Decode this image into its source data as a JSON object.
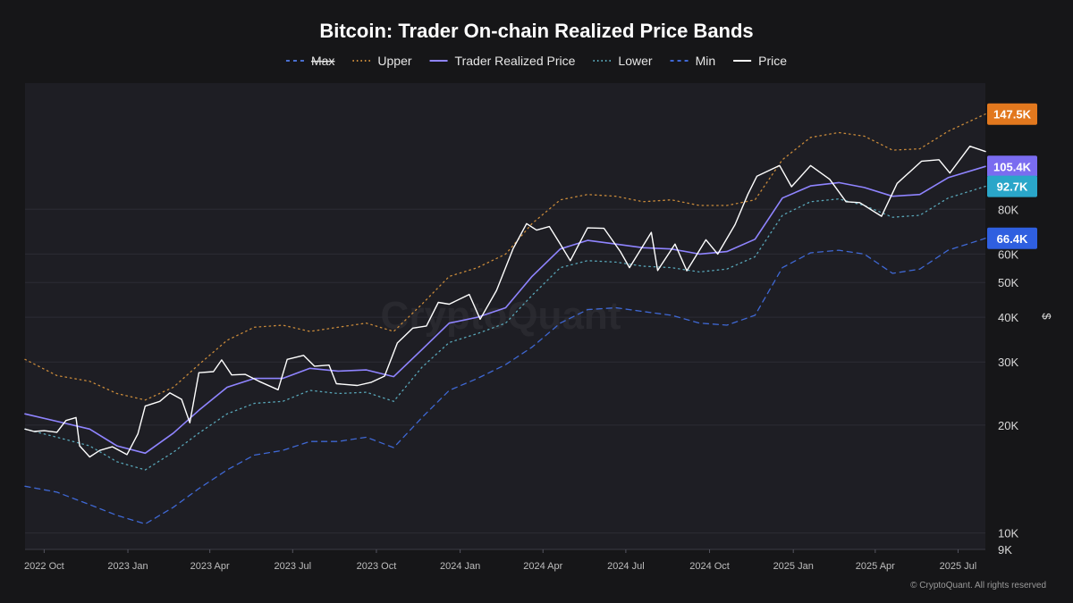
{
  "chart_data": {
    "type": "line",
    "title": "Bitcoin: Trader On-chain Realized Price Bands",
    "ylabel": "$",
    "yscale": "log",
    "ylim": [
      9000,
      180000
    ],
    "legend": [
      {
        "label": "Max",
        "color": "#4a6fd0",
        "style": "dashed",
        "disabled": true
      },
      {
        "label": "Upper",
        "color": "#c98a3a",
        "style": "dotted"
      },
      {
        "label": "Trader Realized Price",
        "color": "#8f84ff",
        "style": "solid"
      },
      {
        "label": "Lower",
        "color": "#58a6b8",
        "style": "dotted"
      },
      {
        "label": "Min",
        "color": "#3f68d4",
        "style": "dashed"
      },
      {
        "label": "Price",
        "color": "#ffffff",
        "style": "solid"
      }
    ],
    "y_ticks": [
      {
        "label": "9K",
        "value": 9000
      },
      {
        "label": "10K",
        "value": 10000
      },
      {
        "label": "20K",
        "value": 20000
      },
      {
        "label": "30K",
        "value": 30000
      },
      {
        "label": "40K",
        "value": 40000
      },
      {
        "label": "50K",
        "value": 50000
      },
      {
        "label": "60K",
        "value": 60000
      },
      {
        "label": "80K",
        "value": 80000
      }
    ],
    "x_ticks": [
      {
        "label": "2022 Oct",
        "value": "2022-10-01"
      },
      {
        "label": "2023 Jan",
        "value": "2023-01-01"
      },
      {
        "label": "2023 Apr",
        "value": "2023-04-01"
      },
      {
        "label": "2023 Jul",
        "value": "2023-07-01"
      },
      {
        "label": "2023 Oct",
        "value": "2023-10-01"
      },
      {
        "label": "2024 Jan",
        "value": "2024-01-01"
      },
      {
        "label": "2024 Apr",
        "value": "2024-04-01"
      },
      {
        "label": "2024 Jul",
        "value": "2024-07-01"
      },
      {
        "label": "2024 Oct",
        "value": "2024-10-01"
      },
      {
        "label": "2025 Jan",
        "value": "2025-01-01"
      },
      {
        "label": "2025 Apr",
        "value": "2025-04-01"
      },
      {
        "label": "2025 Jul",
        "value": "2025-07-01"
      }
    ],
    "xlim": [
      "2022-09-10",
      "2025-07-31"
    ],
    "last_value_badges": [
      {
        "label": "147.5K",
        "value": 147500,
        "color": "#e2781e"
      },
      {
        "label": "105.4K",
        "value": 105400,
        "color": "#7a6cf0"
      },
      {
        "label": "92.7K",
        "value": 92700,
        "color": "#2aa6c9"
      },
      {
        "label": "66.4K",
        "value": 66400,
        "color": "#2f5fe0"
      }
    ],
    "series": [
      {
        "name": "Upper",
        "color": "#c98a3a",
        "style": "dotted",
        "points": [
          [
            "2022-09-10",
            30500
          ],
          [
            "2022-10-15",
            27500
          ],
          [
            "2022-11-20",
            26500
          ],
          [
            "2022-12-20",
            24500
          ],
          [
            "2023-01-20",
            23500
          ],
          [
            "2023-02-20",
            25500
          ],
          [
            "2023-03-20",
            29500
          ],
          [
            "2023-04-20",
            34500
          ],
          [
            "2023-05-20",
            37500
          ],
          [
            "2023-06-20",
            38000
          ],
          [
            "2023-07-20",
            36500
          ],
          [
            "2023-08-20",
            37500
          ],
          [
            "2023-09-20",
            38500
          ],
          [
            "2023-10-20",
            36500
          ],
          [
            "2023-11-20",
            43500
          ],
          [
            "2023-12-20",
            52000
          ],
          [
            "2024-01-20",
            55000
          ],
          [
            "2024-02-20",
            60000
          ],
          [
            "2024-03-20",
            73000
          ],
          [
            "2024-04-20",
            85000
          ],
          [
            "2024-05-20",
            88000
          ],
          [
            "2024-06-20",
            87000
          ],
          [
            "2024-07-20",
            84000
          ],
          [
            "2024-08-20",
            85000
          ],
          [
            "2024-09-20",
            82000
          ],
          [
            "2024-10-20",
            82000
          ],
          [
            "2024-11-20",
            85000
          ],
          [
            "2024-12-20",
            110000
          ],
          [
            "2025-01-20",
            127000
          ],
          [
            "2025-02-20",
            131000
          ],
          [
            "2025-03-20",
            128000
          ],
          [
            "2025-04-20",
            117000
          ],
          [
            "2025-05-20",
            118000
          ],
          [
            "2025-06-20",
            132000
          ],
          [
            "2025-07-31",
            147500
          ]
        ]
      },
      {
        "name": "Trader Realized Price",
        "color": "#8f84ff",
        "style": "solid",
        "points": [
          [
            "2022-09-10",
            21500
          ],
          [
            "2022-10-15",
            20500
          ],
          [
            "2022-11-20",
            19500
          ],
          [
            "2022-12-20",
            17500
          ],
          [
            "2023-01-20",
            16700
          ],
          [
            "2023-02-20",
            19000
          ],
          [
            "2023-03-20",
            22000
          ],
          [
            "2023-04-20",
            25500
          ],
          [
            "2023-05-20",
            27000
          ],
          [
            "2023-06-20",
            27000
          ],
          [
            "2023-07-20",
            28800
          ],
          [
            "2023-08-20",
            28300
          ],
          [
            "2023-09-20",
            28500
          ],
          [
            "2023-10-20",
            27300
          ],
          [
            "2023-11-20",
            32500
          ],
          [
            "2023-12-20",
            38500
          ],
          [
            "2024-01-20",
            40000
          ],
          [
            "2024-02-20",
            42500
          ],
          [
            "2024-03-20",
            52000
          ],
          [
            "2024-04-20",
            62000
          ],
          [
            "2024-05-20",
            65500
          ],
          [
            "2024-06-20",
            64000
          ],
          [
            "2024-07-20",
            62500
          ],
          [
            "2024-08-20",
            62000
          ],
          [
            "2024-09-20",
            60000
          ],
          [
            "2024-10-20",
            61000
          ],
          [
            "2024-11-20",
            66000
          ],
          [
            "2024-12-20",
            86000
          ],
          [
            "2025-01-20",
            93000
          ],
          [
            "2025-02-20",
            95000
          ],
          [
            "2025-03-20",
            92000
          ],
          [
            "2025-04-20",
            87000
          ],
          [
            "2025-05-20",
            88000
          ],
          [
            "2025-06-20",
            98000
          ],
          [
            "2025-07-31",
            105400
          ]
        ]
      },
      {
        "name": "Lower",
        "color": "#58a6b8",
        "style": "dotted",
        "points": [
          [
            "2022-09-10",
            19500
          ],
          [
            "2022-10-15",
            18500
          ],
          [
            "2022-11-20",
            17500
          ],
          [
            "2022-12-20",
            15800
          ],
          [
            "2023-01-20",
            15000
          ],
          [
            "2023-02-20",
            16800
          ],
          [
            "2023-03-20",
            19000
          ],
          [
            "2023-04-20",
            21500
          ],
          [
            "2023-05-20",
            23000
          ],
          [
            "2023-06-20",
            23300
          ],
          [
            "2023-07-20",
            25000
          ],
          [
            "2023-08-20",
            24500
          ],
          [
            "2023-09-20",
            24700
          ],
          [
            "2023-10-20",
            23300
          ],
          [
            "2023-11-20",
            29000
          ],
          [
            "2023-12-20",
            34000
          ],
          [
            "2024-01-20",
            36000
          ],
          [
            "2024-02-20",
            38500
          ],
          [
            "2024-03-20",
            46000
          ],
          [
            "2024-04-20",
            55000
          ],
          [
            "2024-05-20",
            57500
          ],
          [
            "2024-06-20",
            57000
          ],
          [
            "2024-07-20",
            55500
          ],
          [
            "2024-08-20",
            55000
          ],
          [
            "2024-09-20",
            53500
          ],
          [
            "2024-10-20",
            54500
          ],
          [
            "2024-11-20",
            59000
          ],
          [
            "2024-12-20",
            77000
          ],
          [
            "2025-01-20",
            84000
          ],
          [
            "2025-02-20",
            85500
          ],
          [
            "2025-03-20",
            82000
          ],
          [
            "2025-04-20",
            76000
          ],
          [
            "2025-05-20",
            77000
          ],
          [
            "2025-06-20",
            86000
          ],
          [
            "2025-07-31",
            92700
          ]
        ]
      },
      {
        "name": "Min",
        "color": "#3f68d4",
        "style": "dashed",
        "points": [
          [
            "2022-09-10",
            13500
          ],
          [
            "2022-10-15",
            13000
          ],
          [
            "2022-11-20",
            12000
          ],
          [
            "2022-12-20",
            11200
          ],
          [
            "2023-01-20",
            10600
          ],
          [
            "2023-02-20",
            11800
          ],
          [
            "2023-03-20",
            13300
          ],
          [
            "2023-04-20",
            15000
          ],
          [
            "2023-05-20",
            16500
          ],
          [
            "2023-06-20",
            17000
          ],
          [
            "2023-07-20",
            18000
          ],
          [
            "2023-08-20",
            18000
          ],
          [
            "2023-09-20",
            18500
          ],
          [
            "2023-10-20",
            17300
          ],
          [
            "2023-11-20",
            21000
          ],
          [
            "2023-12-20",
            25000
          ],
          [
            "2024-01-20",
            27000
          ],
          [
            "2024-02-20",
            29500
          ],
          [
            "2024-03-20",
            33000
          ],
          [
            "2024-04-20",
            38500
          ],
          [
            "2024-05-20",
            42000
          ],
          [
            "2024-06-20",
            42500
          ],
          [
            "2024-07-20",
            41500
          ],
          [
            "2024-08-20",
            40500
          ],
          [
            "2024-09-20",
            38500
          ],
          [
            "2024-10-20",
            38000
          ],
          [
            "2024-11-20",
            40500
          ],
          [
            "2024-12-20",
            55000
          ],
          [
            "2025-01-20",
            60500
          ],
          [
            "2025-02-20",
            61500
          ],
          [
            "2025-03-20",
            60000
          ],
          [
            "2025-04-20",
            53000
          ],
          [
            "2025-05-20",
            54500
          ],
          [
            "2025-06-20",
            61500
          ],
          [
            "2025-07-31",
            66400
          ]
        ]
      },
      {
        "name": "Price",
        "color": "#ffffff",
        "style": "solid",
        "points": [
          [
            "2022-09-10",
            19500
          ],
          [
            "2022-09-20",
            19200
          ],
          [
            "2022-10-01",
            19300
          ],
          [
            "2022-10-15",
            19100
          ],
          [
            "2022-10-25",
            20600
          ],
          [
            "2022-11-05",
            21000
          ],
          [
            "2022-11-09",
            17500
          ],
          [
            "2022-11-20",
            16300
          ],
          [
            "2022-12-01",
            17000
          ],
          [
            "2022-12-15",
            17400
          ],
          [
            "2022-12-31",
            16550
          ],
          [
            "2023-01-12",
            18900
          ],
          [
            "2023-01-20",
            22600
          ],
          [
            "2023-02-05",
            23300
          ],
          [
            "2023-02-16",
            24600
          ],
          [
            "2023-03-01",
            23600
          ],
          [
            "2023-03-10",
            20300
          ],
          [
            "2023-03-20",
            28000
          ],
          [
            "2023-04-05",
            28200
          ],
          [
            "2023-04-14",
            30400
          ],
          [
            "2023-04-25",
            27600
          ],
          [
            "2023-05-10",
            27700
          ],
          [
            "2023-05-25",
            26500
          ],
          [
            "2023-06-15",
            25100
          ],
          [
            "2023-06-25",
            30500
          ],
          [
            "2023-07-13",
            31300
          ],
          [
            "2023-07-25",
            29200
          ],
          [
            "2023-08-10",
            29400
          ],
          [
            "2023-08-18",
            26100
          ],
          [
            "2023-09-10",
            25800
          ],
          [
            "2023-09-25",
            26300
          ],
          [
            "2023-10-10",
            27400
          ],
          [
            "2023-10-24",
            33900
          ],
          [
            "2023-11-10",
            37300
          ],
          [
            "2023-11-25",
            37800
          ],
          [
            "2023-12-08",
            44000
          ],
          [
            "2023-12-20",
            43500
          ],
          [
            "2024-01-11",
            46300
          ],
          [
            "2024-01-23",
            39500
          ],
          [
            "2024-02-10",
            47500
          ],
          [
            "2024-02-28",
            62000
          ],
          [
            "2024-03-14",
            73000
          ],
          [
            "2024-03-25",
            70000
          ],
          [
            "2024-04-08",
            71600
          ],
          [
            "2024-04-20",
            64000
          ],
          [
            "2024-05-01",
            57500
          ],
          [
            "2024-05-20",
            71000
          ],
          [
            "2024-06-07",
            70800
          ],
          [
            "2024-06-25",
            61000
          ],
          [
            "2024-07-05",
            55000
          ],
          [
            "2024-07-29",
            69000
          ],
          [
            "2024-08-05",
            54000
          ],
          [
            "2024-08-24",
            64000
          ],
          [
            "2024-09-06",
            53900
          ],
          [
            "2024-09-27",
            65800
          ],
          [
            "2024-10-10",
            60000
          ],
          [
            "2024-10-29",
            72500
          ],
          [
            "2024-11-12",
            88000
          ],
          [
            "2024-11-22",
            99000
          ],
          [
            "2024-12-17",
            106000
          ],
          [
            "2024-12-30",
            92500
          ],
          [
            "2025-01-20",
            106000
          ],
          [
            "2025-02-10",
            97000
          ],
          [
            "2025-02-28",
            84000
          ],
          [
            "2025-03-15",
            83500
          ],
          [
            "2025-04-08",
            76500
          ],
          [
            "2025-04-25",
            94500
          ],
          [
            "2025-05-22",
            109000
          ],
          [
            "2025-06-10",
            110000
          ],
          [
            "2025-06-22",
            101000
          ],
          [
            "2025-07-14",
            120000
          ],
          [
            "2025-07-31",
            116000
          ]
        ]
      }
    ],
    "watermark": "CryptoQuant",
    "footer": "© CryptoQuant. All rights reserved"
  }
}
